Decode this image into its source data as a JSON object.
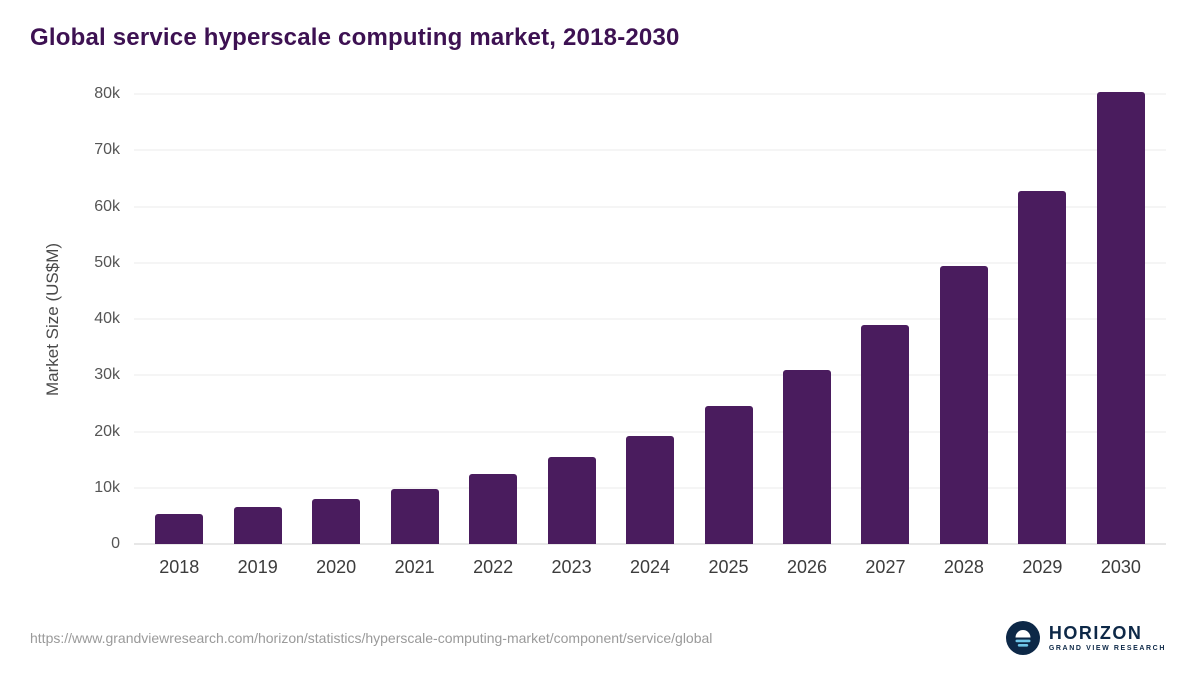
{
  "chart_data": {
    "type": "bar",
    "title": "Global service hyperscale computing market, 2018-2030",
    "xlabel": "",
    "ylabel": "Market Size (US$M)",
    "categories": [
      "2018",
      "2019",
      "2020",
      "2021",
      "2022",
      "2023",
      "2024",
      "2025",
      "2026",
      "2027",
      "2028",
      "2029",
      "2030"
    ],
    "values": [
      5300,
      6600,
      8000,
      9800,
      12400,
      15400,
      19200,
      24500,
      30900,
      38900,
      49400,
      62800,
      80300
    ],
    "ylim": [
      0,
      80000
    ],
    "yticks": [
      0,
      10000,
      20000,
      30000,
      40000,
      50000,
      60000,
      70000,
      80000
    ],
    "ytick_labels": [
      "0",
      "10k",
      "20k",
      "30k",
      "40k",
      "50k",
      "60k",
      "70k",
      "80k"
    ],
    "grid": true,
    "legend_position": "none",
    "bar_color": "#4a1c5e"
  },
  "footer": {
    "source_url": "https://www.grandviewresearch.com/horizon/statistics/hyperscale-computing-market/component/service/global",
    "brand_name": "HORIZON",
    "brand_subtitle": "GRAND VIEW RESEARCH"
  },
  "colors": {
    "title": "#3d1152",
    "bar": "#4a1c5e",
    "logo_navy": "#0d2847",
    "logo_accent": "#6fc6e8",
    "gridline": "#ebebeb"
  }
}
